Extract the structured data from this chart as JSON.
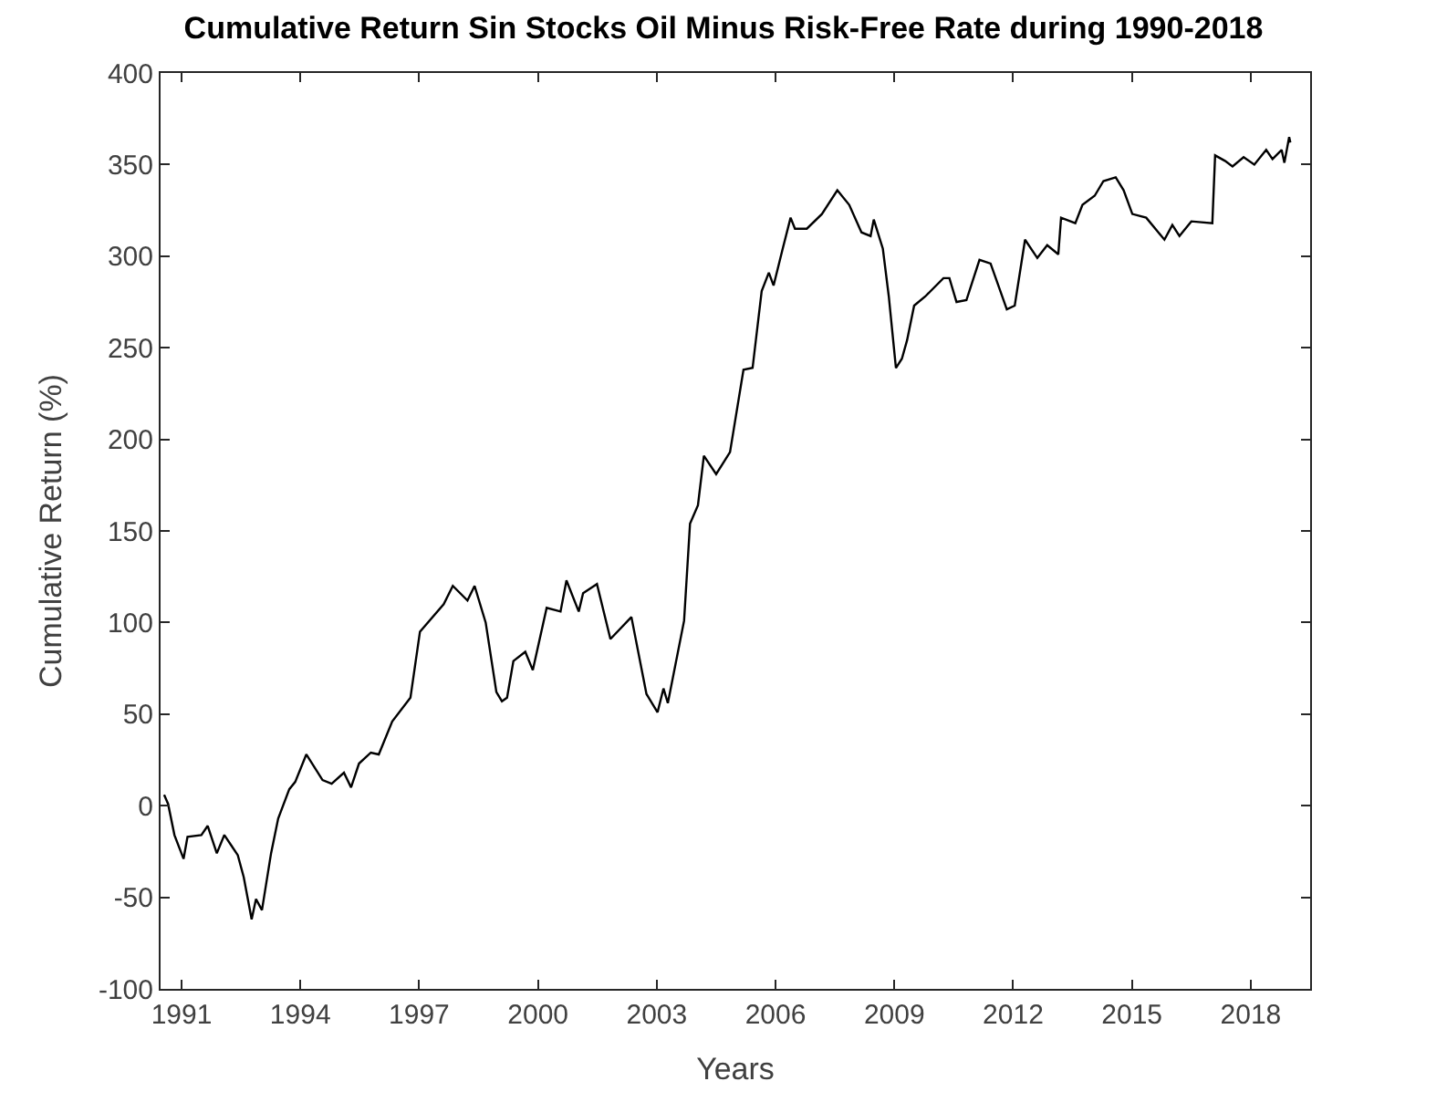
{
  "chart_data": {
    "type": "line",
    "title": "Cumulative Return Sin Stocks Oil Minus Risk-Free Rate during 1990-2018",
    "xlabel": "Years",
    "ylabel": "Cumulative Return (%)",
    "x": [
      1990.56,
      1990.66,
      1990.82,
      1991.05,
      1991.15,
      1991.5,
      1991.66,
      1991.89,
      1992.08,
      1992.42,
      1992.57,
      1992.77,
      1992.88,
      1993.03,
      1993.26,
      1993.44,
      1993.72,
      1993.87,
      1994.15,
      1994.56,
      1994.79,
      1995.1,
      1995.28,
      1995.48,
      1995.78,
      1995.98,
      1996.32,
      1996.78,
      1997.02,
      1997.62,
      1997.85,
      1998.22,
      1998.4,
      1998.68,
      1998.95,
      1999.09,
      1999.22,
      1999.38,
      1999.68,
      1999.87,
      2000.22,
      2000.57,
      2000.72,
      2001.03,
      2001.14,
      2001.49,
      2001.83,
      2002.36,
      2002.74,
      2003.02,
      2003.17,
      2003.28,
      2003.69,
      2003.84,
      2004.04,
      2004.19,
      2004.5,
      2004.85,
      2005.19,
      2005.42,
      2005.65,
      2005.83,
      2005.95,
      2006.18,
      2006.38,
      2006.49,
      2006.79,
      2007.17,
      2007.56,
      2007.86,
      2008.17,
      2008.4,
      2008.48,
      2008.71,
      2008.86,
      2009.04,
      2009.19,
      2009.32,
      2009.5,
      2009.78,
      2010.24,
      2010.39,
      2010.57,
      2010.82,
      2011.15,
      2011.43,
      2011.84,
      2012.04,
      2012.3,
      2012.61,
      2012.86,
      2013.14,
      2013.21,
      2013.57,
      2013.75,
      2014.06,
      2014.28,
      2014.59,
      2014.79,
      2015.01,
      2015.36,
      2015.82,
      2016.02,
      2016.2,
      2016.5,
      2017.03,
      2017.1,
      2017.35,
      2017.54,
      2017.82,
      2018.09,
      2018.39,
      2018.55,
      2018.78,
      2018.85,
      2018.97,
      2019.0
    ],
    "series": [
      {
        "color": "#000000",
        "values": [
          6,
          1,
          -16,
          -29,
          -17,
          -16,
          -11,
          -26,
          -16,
          -27,
          -39,
          -62,
          -51,
          -57,
          -26,
          -7,
          9,
          13,
          28,
          14,
          12,
          18,
          10,
          23,
          29,
          28,
          46,
          59,
          95,
          110,
          120,
          112,
          120,
          100,
          62,
          57,
          59,
          79,
          84,
          74,
          108,
          106,
          123,
          106,
          116,
          121,
          91,
          103,
          61,
          51,
          64,
          56,
          101,
          154,
          164,
          191,
          181,
          193,
          238,
          239,
          281,
          291,
          284,
          304,
          321,
          315,
          315,
          323,
          336,
          328,
          313,
          311,
          320,
          304,
          278,
          239,
          244,
          254,
          273,
          278,
          288,
          288,
          275,
          276,
          298,
          296,
          271,
          273,
          309,
          299,
          306,
          301,
          321,
          318,
          328,
          333,
          341,
          343,
          336,
          323,
          321,
          309,
          317,
          311,
          319,
          318,
          355,
          352,
          349,
          354,
          350,
          358,
          353,
          358,
          351,
          365,
          362
        ]
      }
    ],
    "xlim": [
      1990.47,
      2019.5
    ],
    "xticks": [
      1991,
      1994,
      1997,
      2000,
      2003,
      2006,
      2009,
      2012,
      2015,
      2018
    ],
    "ylim": [
      -100,
      400
    ],
    "yticks": [
      -100,
      -50,
      0,
      50,
      100,
      150,
      200,
      250,
      300,
      350,
      400
    ],
    "grid": false,
    "marker": "none",
    "line_style": "solid"
  }
}
